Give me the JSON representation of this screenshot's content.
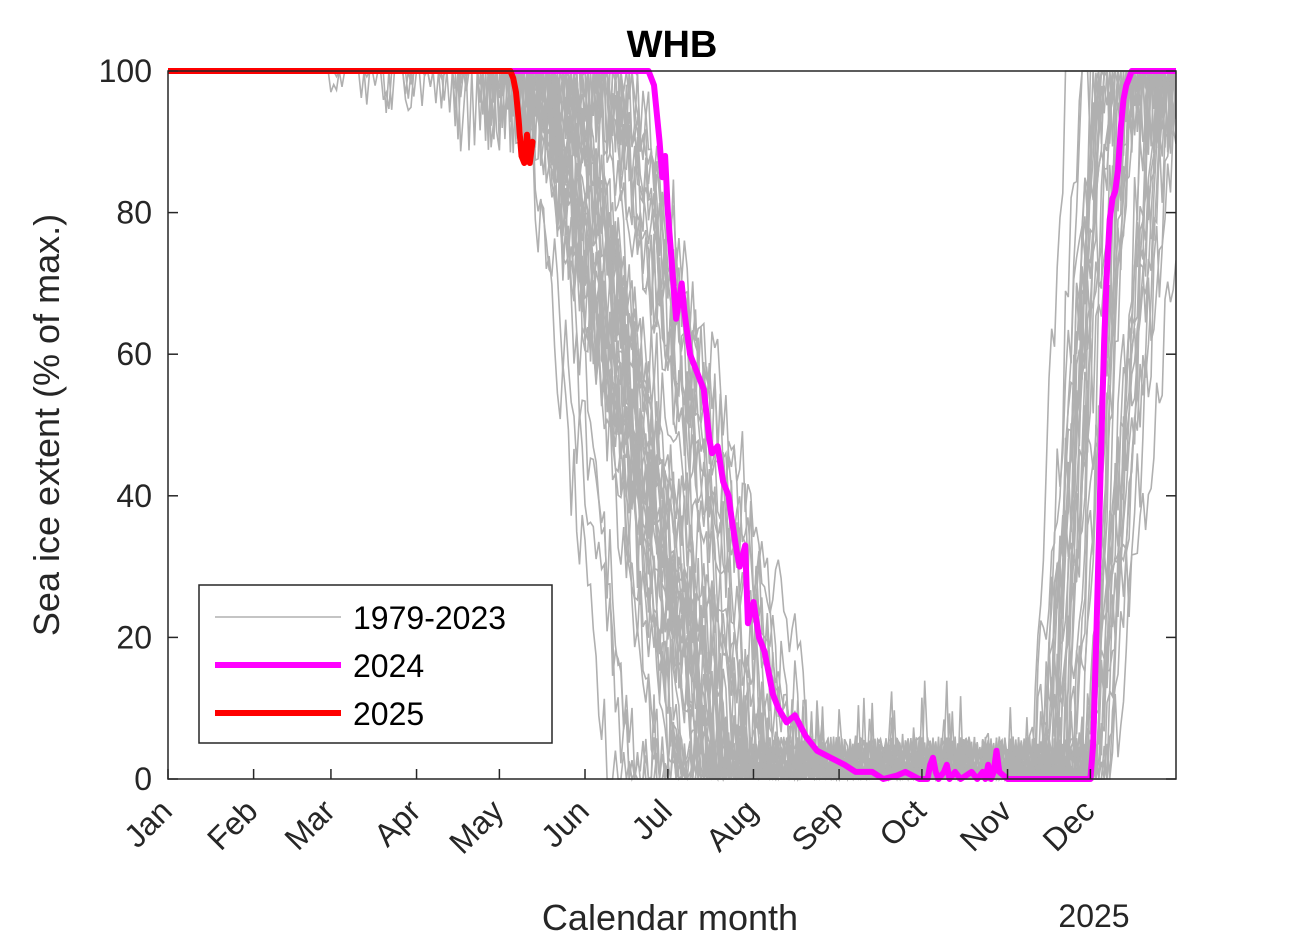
{
  "chart_data": {
    "type": "line",
    "title": "WHB",
    "xlabel": "Calendar month",
    "ylabel": "Sea ice extent (% of max.)",
    "year_label": "2025",
    "x_unit": "day of year",
    "xlim": [
      1,
      366
    ],
    "ylim": [
      0,
      100
    ],
    "yticks": [
      0,
      20,
      40,
      60,
      80,
      100
    ],
    "month_ticks": [
      {
        "label": "Jan",
        "day": 1
      },
      {
        "label": "Feb",
        "day": 32
      },
      {
        "label": "Mar",
        "day": 60
      },
      {
        "label": "Apr",
        "day": 91
      },
      {
        "label": "May",
        "day": 121
      },
      {
        "label": "Jun",
        "day": 152
      },
      {
        "label": "Jul",
        "day": 182
      },
      {
        "label": "Aug",
        "day": 213
      },
      {
        "label": "Sep",
        "day": 244
      },
      {
        "label": "Oct",
        "day": 274
      },
      {
        "label": "Nov",
        "day": 305
      },
      {
        "label": "Dec",
        "day": 335
      }
    ],
    "grid": false,
    "legend_position": "bottom-left",
    "historical": {
      "name": "1979-2023",
      "color": "#b0b0b0",
      "annual_range": [
        1979,
        2023
      ],
      "breakup_day_range": [
        128,
        200
      ],
      "freezeup_day_range": [
        312,
        355
      ]
    },
    "series": [
      {
        "name": "2024",
        "color": "#ff00ff",
        "x": [
          1,
          100,
          150,
          175,
          177,
          179,
          180,
          181,
          182,
          185,
          187,
          188,
          190,
          192,
          195,
          197,
          198,
          200,
          202,
          204,
          205,
          207,
          208,
          210,
          211,
          213,
          215,
          217,
          220,
          222,
          225,
          228,
          232,
          236,
          241,
          246,
          250,
          256,
          260,
          265,
          268,
          273,
          275,
          276,
          277,
          278,
          279,
          280,
          282,
          283,
          284,
          286,
          288,
          290,
          292,
          294,
          296,
          297,
          298,
          299,
          300,
          301,
          302,
          305,
          315,
          325,
          334,
          335,
          336,
          337,
          338,
          339,
          340,
          341,
          342,
          343,
          344,
          345,
          346,
          347,
          348,
          349,
          350,
          351,
          352,
          355,
          360,
          366
        ],
        "y": [
          100,
          100,
          100,
          100,
          98,
          90,
          85,
          88,
          80,
          65,
          70,
          66,
          60,
          58,
          55,
          48,
          46,
          47,
          42,
          40,
          37,
          32,
          30,
          33,
          22,
          25,
          20,
          18,
          12,
          10,
          8,
          9,
          6,
          4,
          3,
          2,
          1,
          1,
          0,
          0.5,
          1,
          0,
          0,
          0,
          2,
          3,
          1,
          0,
          1,
          2,
          0,
          1,
          0,
          0.5,
          1,
          0,
          1,
          0,
          2,
          0,
          1,
          4,
          1,
          0,
          0,
          0,
          0,
          0,
          5,
          18,
          33,
          48,
          62,
          72,
          79,
          82,
          83,
          86,
          92,
          96,
          98,
          99,
          100,
          100,
          100,
          100,
          100,
          100
        ]
      },
      {
        "name": "2025",
        "color": "#ff0000",
        "x": [
          1,
          30,
          60,
          90,
          120,
          125,
          126,
          127,
          128,
          129,
          130,
          131,
          132,
          133
        ],
        "y": [
          100,
          100,
          100,
          100,
          100,
          100,
          99,
          97,
          93,
          88,
          87,
          91,
          87,
          90
        ]
      }
    ]
  }
}
